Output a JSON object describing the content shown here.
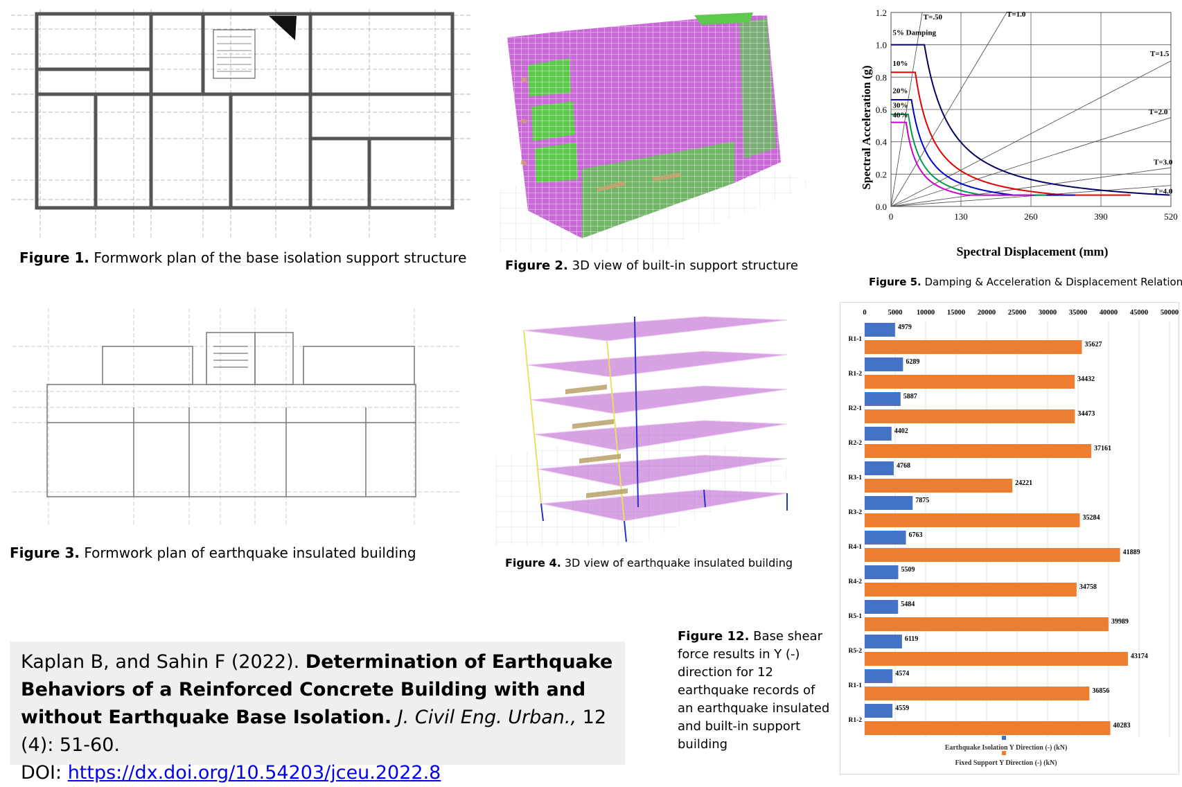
{
  "fig1": {
    "label": "Figure 1.",
    "text": " Formwork plan of the base isolation support structure"
  },
  "fig2": {
    "label": "Figure 2.",
    "text": " 3D view of built-in support structure"
  },
  "fig3": {
    "label": "Figure 3.",
    "text": " Formwork plan of earthquake insulated building"
  },
  "fig4": {
    "label": "Figure 4.",
    "text": " 3D view of earthquake insulated building"
  },
  "fig5": {
    "label": "Figure 5.",
    "text": " Damping & Acceleration & Displacement Relationship"
  },
  "fig12": {
    "label": "Figure 12.",
    "text": " Base shear force results in Y (-) direction for 12 earthquake records of an earthquake insulated and built-in support building"
  },
  "citation": {
    "authors": "Kaplan B, and Sahin F (2022). ",
    "title": "Determination of Earthquake Behaviors of a Reinforced Concrete Building with and without Earthquake Base Isolation.",
    "journal": " J. Civil Eng. Urban.,",
    "volume": " 12 (4): 51-60.",
    "doi_label": "DOI: ",
    "doi_url": "https://dx.doi.org/10.54203/jceu.2022.8"
  },
  "colors": {
    "isolation": "#4472c4",
    "fixed": "#ed7d31",
    "citation_bg": "#efefef",
    "link": "#0000ee"
  },
  "chart_data": [
    {
      "type": "line",
      "xlabel": "Spectral Displacement (mm)",
      "ylabel": "Spectral Acceleration (g)",
      "xlim": [
        0,
        520
      ],
      "ylim": [
        0,
        1.2
      ],
      "xticks": [
        0,
        130,
        260,
        390,
        520
      ],
      "yticks": [
        0.0,
        0.2,
        0.4,
        0.6,
        0.8,
        1.0,
        1.2
      ],
      "grid": true,
      "period_lines": [
        "T=.50",
        "T=1.0",
        "T=1.5",
        "T=2.0",
        "T=3.0",
        "T=4.0"
      ],
      "series": [
        {
          "name": "5% Damping",
          "color": "#000066",
          "plateau": 1.0
        },
        {
          "name": "10%",
          "color": "#e00000",
          "plateau": 0.83
        },
        {
          "name": "20%",
          "color": "#0000cc",
          "plateau": 0.66
        },
        {
          "name": "30%",
          "color": "#00994d",
          "plateau": 0.57
        },
        {
          "name": "40%",
          "color": "#cc00cc",
          "plateau": 0.52
        }
      ]
    },
    {
      "type": "bar",
      "orientation": "horizontal",
      "categories": [
        "R1-1",
        "R1-2",
        "R2-1",
        "R2-2",
        "R3-1",
        "R3-2",
        "R4-1",
        "R4-2",
        "R5-1",
        "R5-2",
        "R1-1",
        "R1-2"
      ],
      "xticks": [
        0,
        5000,
        10000,
        15000,
        20000,
        25000,
        30000,
        35000,
        40000,
        45000,
        50000
      ],
      "xlim": [
        0,
        50000
      ],
      "legend_position": "bottom",
      "series": [
        {
          "name": "Earthquake Isolation Y Direction (-) (kN)",
          "values": [
            4979,
            6289,
            5887,
            4402,
            4768,
            7875,
            6763,
            5509,
            5484,
            6119,
            4574,
            4559
          ]
        },
        {
          "name": "Fixed Support Y Direction (-) (kN)",
          "values": [
            35627,
            34432,
            34473,
            37161,
            24221,
            35284,
            41889,
            34758,
            39989,
            43174,
            36856,
            40283
          ]
        }
      ]
    }
  ]
}
